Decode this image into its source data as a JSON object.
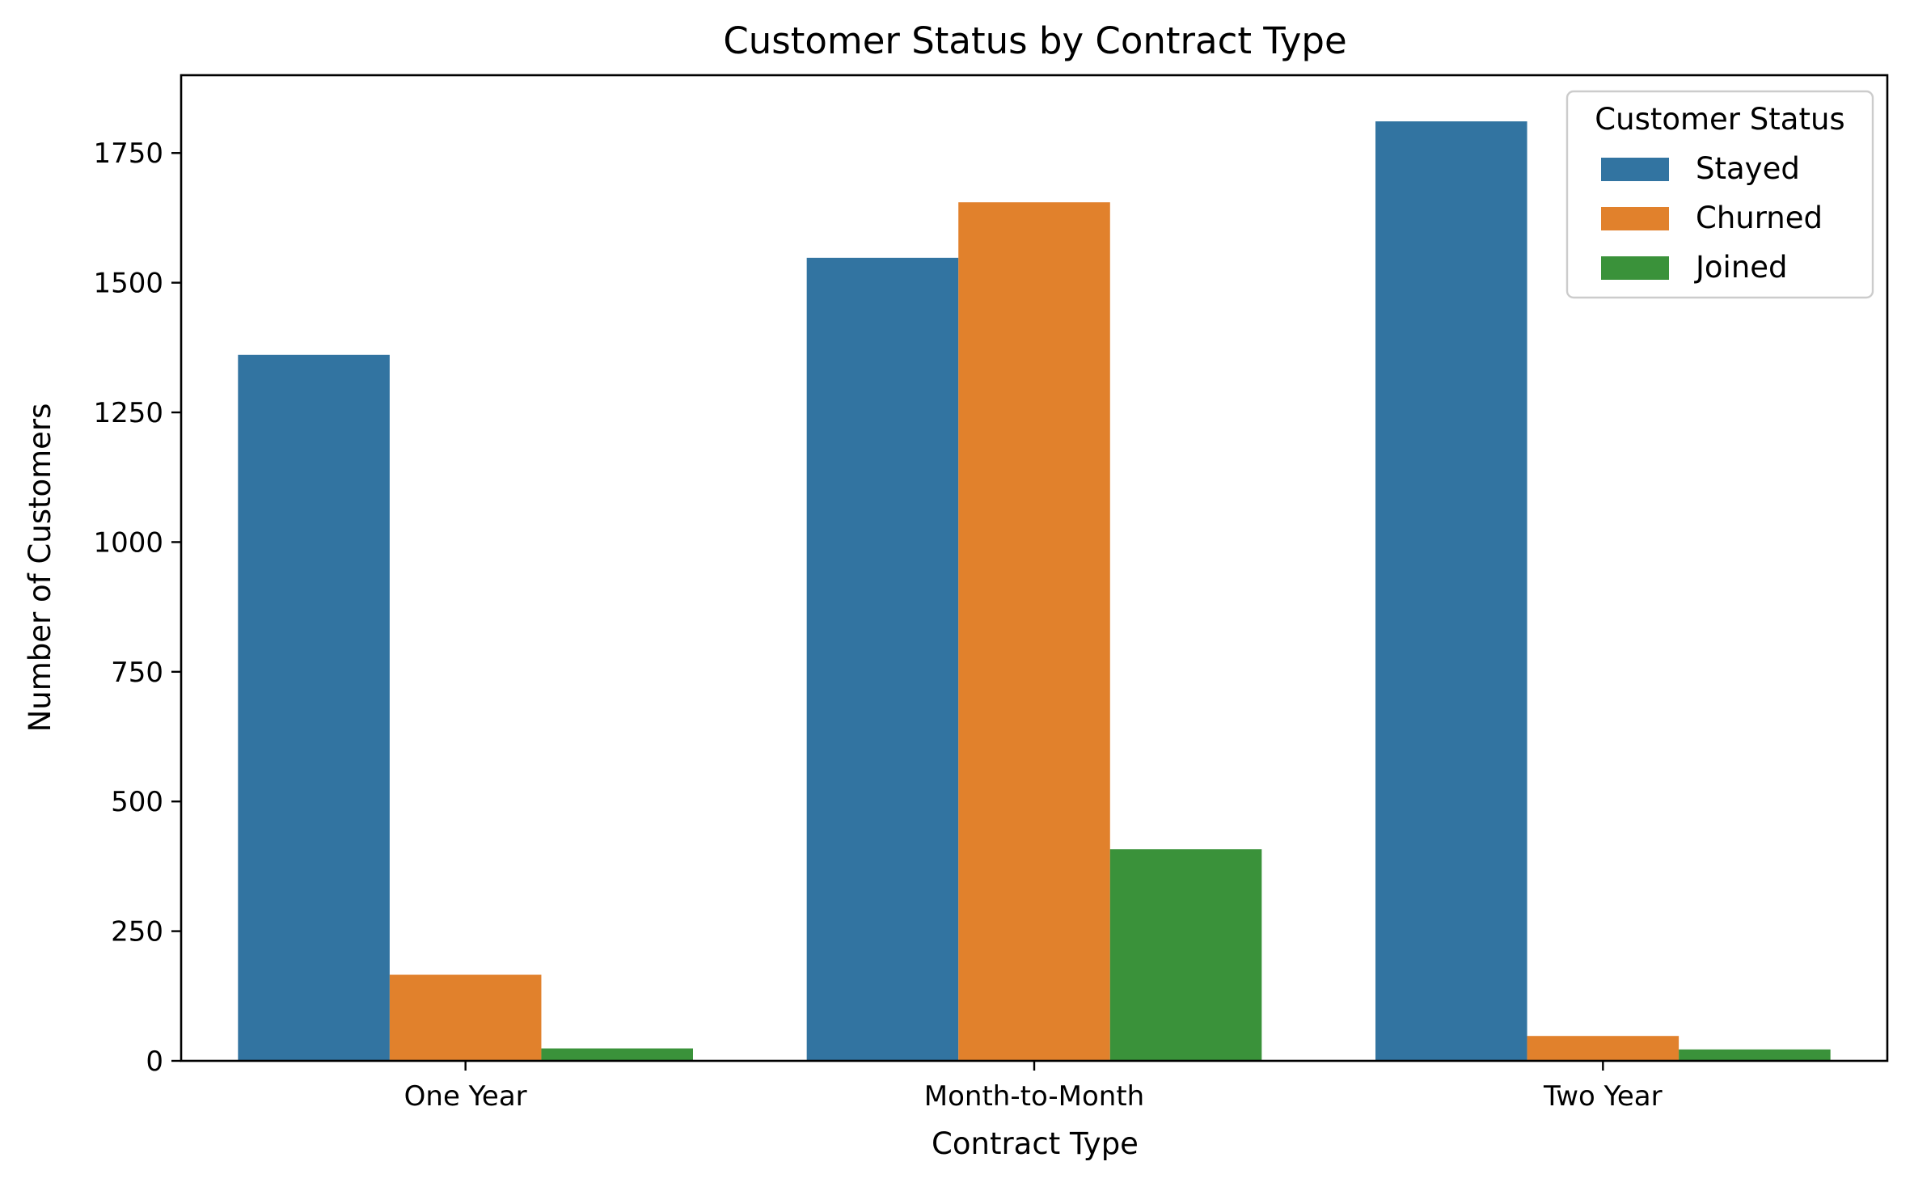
{
  "chart_data": {
    "type": "bar",
    "title": "Customer Status by Contract Type",
    "xlabel": "Contract Type",
    "ylabel": "Number of Customers",
    "categories": [
      "One Year",
      "Month-to-Month",
      "Two Year"
    ],
    "series": [
      {
        "name": "Stayed",
        "color": "#3274a1",
        "values": [
          1361,
          1548,
          1811
        ]
      },
      {
        "name": "Churned",
        "color": "#e1812c",
        "values": [
          166,
          1655,
          48
        ]
      },
      {
        "name": "Joined",
        "color": "#3a923a",
        "values": [
          24,
          408,
          22
        ]
      }
    ],
    "ylim": [
      0,
      1900
    ],
    "yticks": [
      0,
      250,
      500,
      750,
      1000,
      1250,
      1500,
      1750
    ],
    "grid": false,
    "legend": {
      "title": "Customer Status",
      "placement": "top-right"
    }
  }
}
